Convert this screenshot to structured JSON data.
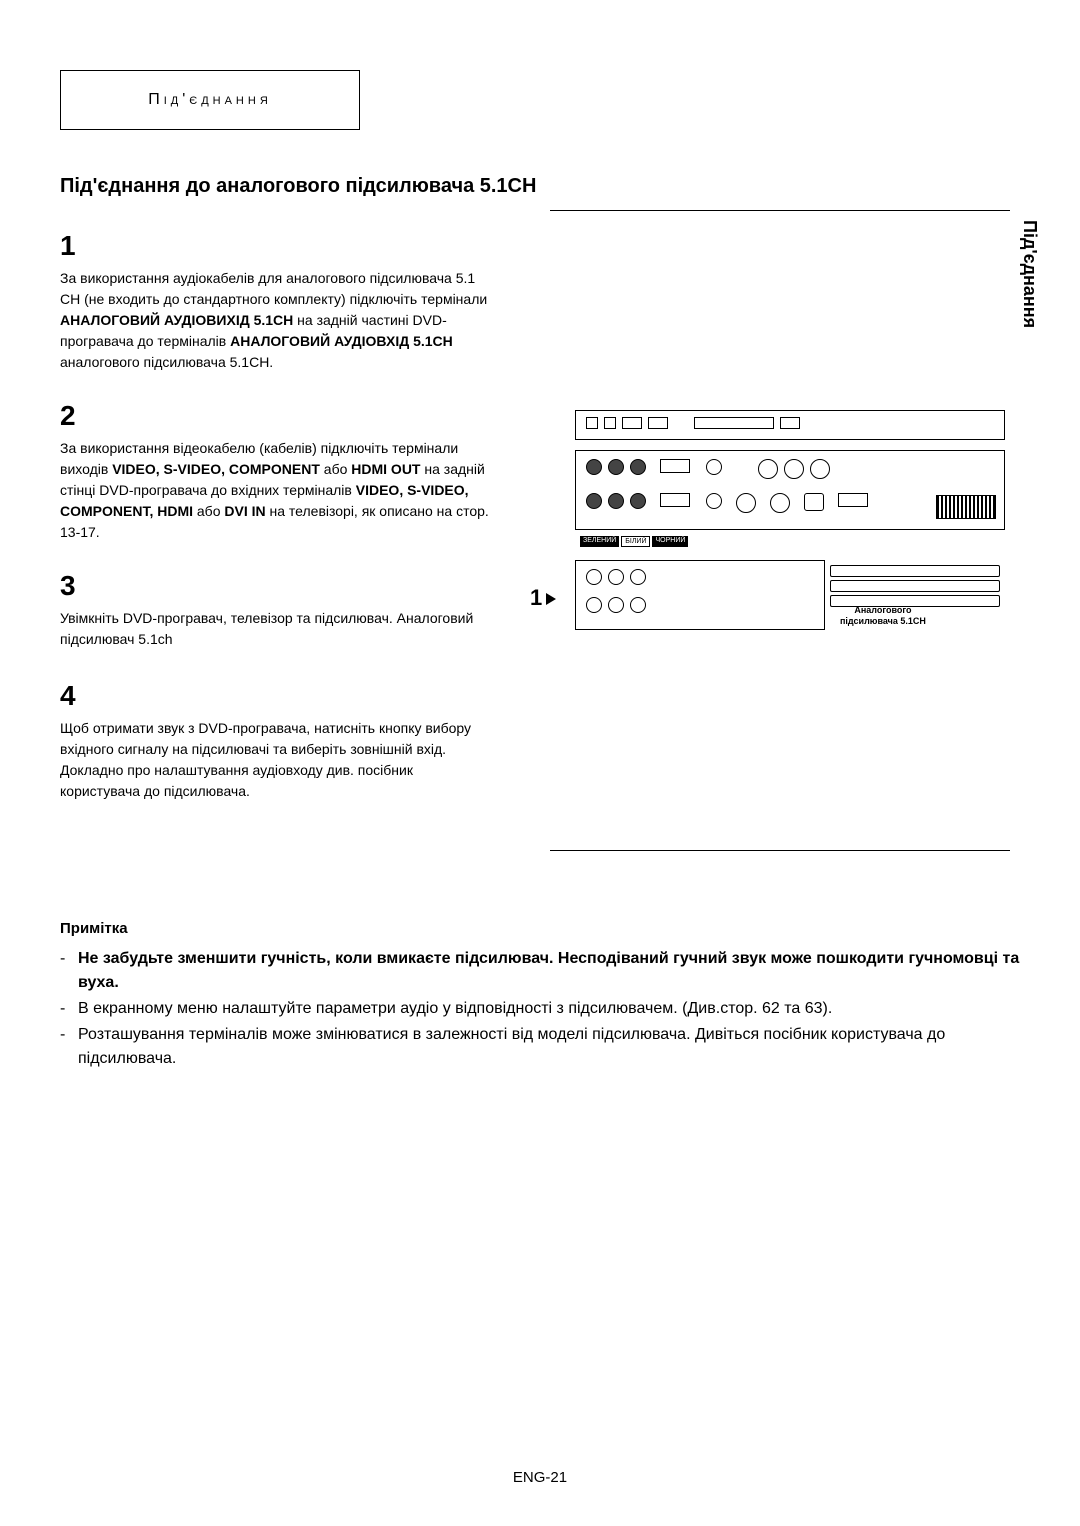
{
  "header_box": "Під'єднання",
  "side_tab": "Під'єднання",
  "main_title": "Під'єднання до аналогового підсилювача 5.1CH",
  "steps": {
    "s1": {
      "num": "1",
      "html": "За використання аудіокабелів для аналогового підсилювача 5.1 CH (не входить до стандартного комплекту) підключіть термінали <b>АНАЛОГОВИЙ АУДІОВИХІД 5.1CH</b> на задній частині DVD-програвача до терміналів <b>АНАЛОГОВИЙ АУДІОВХІД 5.1CH</b> аналогового підсилювача 5.1CH."
    },
    "s2": {
      "num": "2",
      "html": "За використання відеокабелю (кабелів) підключіть термінали виходів <b>VIDEO, S-VIDEO, COMPONENT</b> або <b>HDMI OUT</b> на задній стінці DVD-програвача до вхідних терміналів <b>VIDEO, S-VIDEO, COMPONENT, HDMI</b> або <b>DVI IN</b> на телевізорі, як описано на стор. 13-17."
    },
    "s3": {
      "num": "3",
      "html": "Увімкніть DVD-програвач, телевізор та підсилювач. Аналоговий підсилювач 5.1ch"
    },
    "s4": {
      "num": "4",
      "html": "Щоб отримати звук з DVD-програвача, натисніть кнопку вибору вхідного сигналу на підсилювачі та виберіть зовнішній вхід. Докладно про налаштування аудіовходу див. посібник користувача до підсилювача."
    }
  },
  "diagram": {
    "arrow_label": "1",
    "cable_labels": [
      "ЗЕЛЕНИЙ",
      "БІЛИЙ",
      "ЧОРНИЙ"
    ],
    "amp_label_l1": "Аналогового",
    "amp_label_l2": "підсилювача 5.1CH"
  },
  "notes": {
    "title": "Примітка",
    "items": [
      {
        "bold": true,
        "text": "Не забудьте зменшити гучність, коли вмикаєте підсилювач. Несподіваний гучний звук може пошкодити гучномовці та вуха."
      },
      {
        "bold": false,
        "text": "В екранному меню налаштуйте параметри аудіо у відповідності з підсилювачем. (Див.стор. 62 та 63)."
      },
      {
        "bold": false,
        "text": "Розташування терміналів може змінюватися в залежності від моделі підсилювача. Дивіться посібник користувача до підсилювача."
      }
    ]
  },
  "footer": "ENG-21"
}
